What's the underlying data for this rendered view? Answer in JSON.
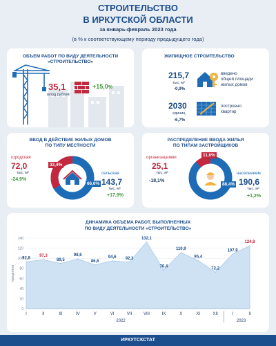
{
  "header": {
    "line1": "СТРОИТЕЛЬСТВО",
    "line2": "В ИРКУТСКОЙ ОБЛАСТИ",
    "period": "за январь-февраль 2023 года",
    "note": "(в % к соответствующему периоду предыдущего года)"
  },
  "works": {
    "title_line1": "ОБЪЕМ РАБОТ ПО ВИДУ ДЕЯТЕЛЬНОСТИ",
    "title_line2": "«СТРОИТЕЛЬСТВО»",
    "value": "35,1",
    "unit": "млрд рублей",
    "change": "+15,0",
    "change_sign": "%"
  },
  "housing": {
    "title": "ЖИЛИЩНОЕ СТРОИТЕЛЬСТВО",
    "area_value": "215,7",
    "area_unit": "тыс. м²",
    "area_change": "-0,9%",
    "area_label_1": "введено",
    "area_label_2": "общей площади",
    "area_label_3": "жилых домов",
    "flats_value": "2030",
    "flats_unit": "единиц",
    "flats_change": "-6,7%",
    "flats_label_1": "построено",
    "flats_label_2": "квартир"
  },
  "locality": {
    "title_line1": "ВВОД В ДЕЙСТВИЕ ЖИЛЫХ ДОМОВ",
    "title_line2": "ПО ТИПУ МЕСТНОСТИ",
    "urban_label": "городская",
    "urban_value": "72,0",
    "urban_unit": "тыс. м²",
    "urban_change": "-24,9%",
    "urban_share": "33,4%",
    "rural_label": "сельская",
    "rural_value": "143,7",
    "rural_unit": "тыс. м²",
    "rural_change": "+17,9%",
    "rural_share": "66,6%",
    "urban_pct": 33.4,
    "colors": {
      "urban": "#c4283f",
      "rural": "#1e6cb6"
    }
  },
  "developers": {
    "title_line1": "РАСПРЕДЕЛЕНИЕ ВВОДА ЖИЛЬЯ",
    "title_line2": "ПО ТИПАМ ЗАСТРОЙЩИКОВ",
    "org_label": "организациями",
    "org_value": "25,1",
    "org_unit": "тыс. м²",
    "org_change": "-18,1%",
    "org_share": "11,6%",
    "pop_label": "населением",
    "pop_value": "190,6",
    "pop_unit": "тыс. м²",
    "pop_change": "+1,2%",
    "pop_share": "88,4%",
    "org_pct": 11.6
  },
  "chart_data": {
    "type": "area",
    "title_line1": "ДИНАМИКА ОБЪЕМА РАБОТ, ВЫПОЛНЕННЫХ",
    "title_line2": "ПО ВИДУ ДЕЯТЕЛЬНОСТИ «СТРОИТЕЛЬСТВО»",
    "ylabel": "процентов",
    "categories": [
      "I",
      "II",
      "III",
      "IV",
      "V",
      "VI",
      "VII",
      "VIII",
      "IX",
      "X",
      "XI",
      "XII",
      "I",
      "II"
    ],
    "year_labels": [
      {
        "label": "2022",
        "index": 5.5
      },
      {
        "label": "2023",
        "index": 12.5
      }
    ],
    "values": [
      92.8,
      97.3,
      89.5,
      98.6,
      86.6,
      94.6,
      92.3,
      132.1,
      76.4,
      110.9,
      95.4,
      72.2,
      107.9,
      124.8
    ],
    "value_labels": [
      "92,8",
      "97,3",
      "89,5",
      "98,6",
      "86,6",
      "94,6",
      "92,3",
      "132,1",
      "76,4",
      "110,9",
      "95,4",
      "72,2",
      "107,9",
      "124,8"
    ],
    "highlight_red": [
      1,
      13
    ],
    "yticks": [
      0,
      20,
      40,
      60,
      80,
      100,
      120,
      140
    ],
    "ylim": [
      0,
      140
    ],
    "colors": {
      "area": "#cfe2f4",
      "line": "#a7c8e8",
      "label": "#1c4d8c",
      "label_red": "#c4283f"
    }
  },
  "footer": {
    "label": "ИРКУТСКСТАТ"
  }
}
